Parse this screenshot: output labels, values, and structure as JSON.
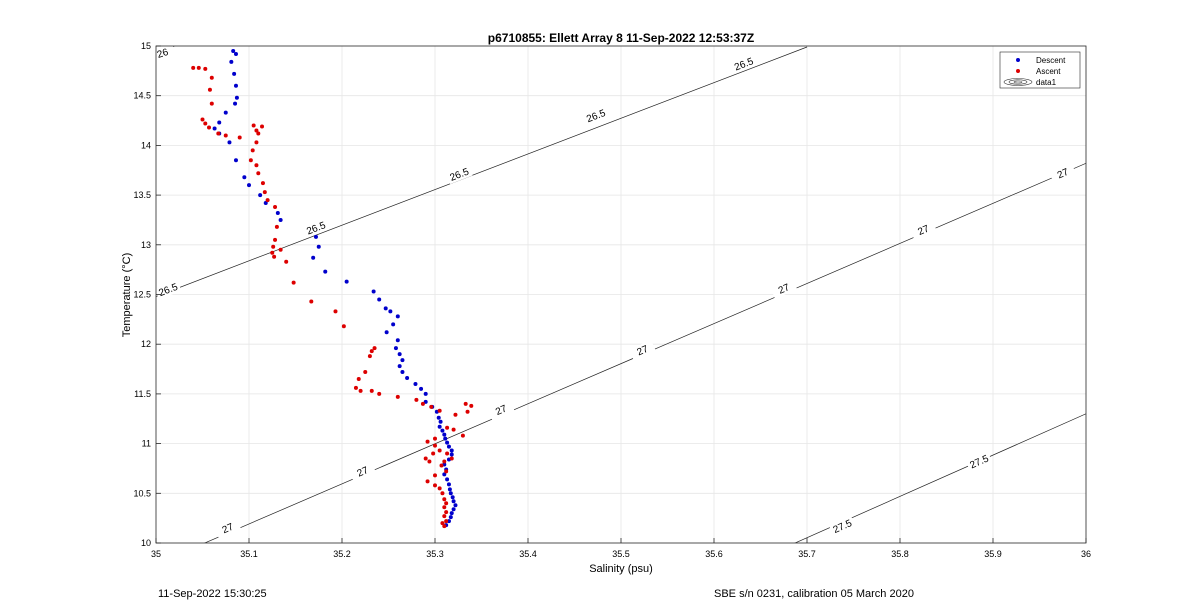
{
  "footer": {
    "left_text": "11-Sep-2022 15:30:25",
    "right_text": "SBE s/n 0231, calibration 05 March 2020"
  },
  "chart_data": {
    "type": "scatter",
    "title": "p6710855: Ellett Array 8 11-Sep-2022 12:53:37Z",
    "xlabel": "Salinity (psu)",
    "ylabel": "Temperature (°C)",
    "xlim": [
      35,
      36
    ],
    "ylim": [
      10,
      15
    ],
    "xticks": [
      35,
      35.1,
      35.2,
      35.3,
      35.4,
      35.5,
      35.6,
      35.7,
      35.8,
      35.9,
      36
    ],
    "yticks": [
      10,
      10.5,
      11,
      11.5,
      12,
      12.5,
      13,
      13.5,
      14,
      14.5,
      15
    ],
    "xtick_labels": [
      "35",
      "35.1",
      "35.2",
      "35.3",
      "35.4",
      "35.5",
      "35.6",
      "35.7",
      "35.8",
      "35.9",
      "36"
    ],
    "ytick_labels": [
      "10",
      "10.5",
      "11",
      "11.5",
      "12",
      "12.5",
      "13",
      "13.5",
      "14",
      "14.5",
      "15"
    ],
    "grid": true,
    "legend_position": "top-right",
    "series": [
      {
        "name": "Descent",
        "color": "#0000cc",
        "marker": "dot",
        "points": [
          [
            35.083,
            14.95
          ],
          [
            35.086,
            14.92
          ],
          [
            35.081,
            14.84
          ],
          [
            35.084,
            14.72
          ],
          [
            35.086,
            14.6
          ],
          [
            35.087,
            14.48
          ],
          [
            35.085,
            14.42
          ],
          [
            35.075,
            14.33
          ],
          [
            35.068,
            14.23
          ],
          [
            35.063,
            14.17
          ],
          [
            35.068,
            14.12
          ],
          [
            35.079,
            14.03
          ],
          [
            35.086,
            13.85
          ],
          [
            35.095,
            13.68
          ],
          [
            35.1,
            13.6
          ],
          [
            35.112,
            13.5
          ],
          [
            35.118,
            13.42
          ],
          [
            35.131,
            13.32
          ],
          [
            35.134,
            13.25
          ],
          [
            35.172,
            13.08
          ],
          [
            35.175,
            12.98
          ],
          [
            35.169,
            12.87
          ],
          [
            35.182,
            12.73
          ],
          [
            35.205,
            12.63
          ],
          [
            35.234,
            12.53
          ],
          [
            35.24,
            12.45
          ],
          [
            35.247,
            12.36
          ],
          [
            35.252,
            12.33
          ],
          [
            35.26,
            12.28
          ],
          [
            35.255,
            12.2
          ],
          [
            35.248,
            12.12
          ],
          [
            35.26,
            12.04
          ],
          [
            35.258,
            11.96
          ],
          [
            35.262,
            11.9
          ],
          [
            35.265,
            11.84
          ],
          [
            35.262,
            11.78
          ],
          [
            35.265,
            11.72
          ],
          [
            35.27,
            11.66
          ],
          [
            35.279,
            11.6
          ],
          [
            35.285,
            11.55
          ],
          [
            35.29,
            11.5
          ],
          [
            35.29,
            11.42
          ],
          [
            35.297,
            11.37
          ],
          [
            35.302,
            11.32
          ],
          [
            35.304,
            11.26
          ],
          [
            35.306,
            11.22
          ],
          [
            35.305,
            11.17
          ],
          [
            35.308,
            11.13
          ],
          [
            35.31,
            11.09
          ],
          [
            35.311,
            11.05
          ],
          [
            35.313,
            11.01
          ],
          [
            35.315,
            10.97
          ],
          [
            35.318,
            10.93
          ],
          [
            35.318,
            10.89
          ],
          [
            35.315,
            10.84
          ],
          [
            35.31,
            10.79
          ],
          [
            35.312,
            10.74
          ],
          [
            35.31,
            10.69
          ],
          [
            35.313,
            10.64
          ],
          [
            35.315,
            10.59
          ],
          [
            35.316,
            10.54
          ],
          [
            35.317,
            10.5
          ],
          [
            35.319,
            10.46
          ],
          [
            35.32,
            10.42
          ],
          [
            35.322,
            10.38
          ],
          [
            35.32,
            10.34
          ],
          [
            35.318,
            10.3
          ],
          [
            35.317,
            10.26
          ],
          [
            35.315,
            10.22
          ],
          [
            35.312,
            10.18
          ]
        ]
      },
      {
        "name": "Ascent",
        "color": "#dd0000",
        "marker": "dot",
        "points": [
          [
            35.04,
            14.78
          ],
          [
            35.046,
            14.78
          ],
          [
            35.053,
            14.77
          ],
          [
            35.06,
            14.68
          ],
          [
            35.058,
            14.56
          ],
          [
            35.06,
            14.42
          ],
          [
            35.05,
            14.26
          ],
          [
            35.053,
            14.22
          ],
          [
            35.057,
            14.18
          ],
          [
            35.067,
            14.12
          ],
          [
            35.075,
            14.1
          ],
          [
            35.09,
            14.08
          ],
          [
            35.105,
            14.2
          ],
          [
            35.108,
            14.15
          ],
          [
            35.114,
            14.19
          ],
          [
            35.11,
            14.12
          ],
          [
            35.108,
            14.03
          ],
          [
            35.104,
            13.95
          ],
          [
            35.102,
            13.85
          ],
          [
            35.108,
            13.8
          ],
          [
            35.11,
            13.72
          ],
          [
            35.115,
            13.62
          ],
          [
            35.117,
            13.53
          ],
          [
            35.12,
            13.45
          ],
          [
            35.128,
            13.38
          ],
          [
            35.13,
            13.18
          ],
          [
            35.128,
            13.05
          ],
          [
            35.126,
            12.98
          ],
          [
            35.134,
            12.95
          ],
          [
            35.125,
            12.92
          ],
          [
            35.127,
            12.88
          ],
          [
            35.14,
            12.83
          ],
          [
            35.148,
            12.62
          ],
          [
            35.167,
            12.43
          ],
          [
            35.193,
            12.33
          ],
          [
            35.202,
            12.18
          ],
          [
            35.235,
            11.96
          ],
          [
            35.232,
            11.93
          ],
          [
            35.23,
            11.88
          ],
          [
            35.225,
            11.72
          ],
          [
            35.218,
            11.65
          ],
          [
            35.215,
            11.56
          ],
          [
            35.22,
            11.53
          ],
          [
            35.232,
            11.53
          ],
          [
            35.24,
            11.5
          ],
          [
            35.26,
            11.47
          ],
          [
            35.28,
            11.44
          ],
          [
            35.287,
            11.4
          ],
          [
            35.296,
            11.37
          ],
          [
            35.305,
            11.33
          ],
          [
            35.322,
            11.29
          ],
          [
            35.335,
            11.32
          ],
          [
            35.339,
            11.38
          ],
          [
            35.333,
            11.4
          ],
          [
            35.313,
            11.16
          ],
          [
            35.32,
            11.14
          ],
          [
            35.33,
            11.08
          ],
          [
            35.3,
            11.05
          ],
          [
            35.292,
            11.02
          ],
          [
            35.3,
            10.98
          ],
          [
            35.305,
            10.93
          ],
          [
            35.298,
            10.9
          ],
          [
            35.29,
            10.85
          ],
          [
            35.294,
            10.82
          ],
          [
            35.313,
            10.9
          ],
          [
            35.318,
            10.85
          ],
          [
            35.31,
            10.82
          ],
          [
            35.307,
            10.78
          ],
          [
            35.312,
            10.72
          ],
          [
            35.3,
            10.68
          ],
          [
            35.292,
            10.62
          ],
          [
            35.3,
            10.58
          ],
          [
            35.305,
            10.55
          ],
          [
            35.308,
            10.5
          ],
          [
            35.31,
            10.44
          ],
          [
            35.312,
            10.4
          ],
          [
            35.31,
            10.36
          ],
          [
            35.312,
            10.31
          ],
          [
            35.31,
            10.27
          ],
          [
            35.312,
            10.22
          ],
          [
            35.308,
            10.2
          ],
          [
            35.31,
            10.17
          ]
        ]
      }
    ],
    "contour_series_name": "data1",
    "density_contours": [
      {
        "sigma": 26,
        "label": "26",
        "line": [
          [
            34.98,
            14.88
          ],
          [
            35.02,
            15.0
          ]
        ],
        "labels": [
          [
            35.007,
            14.93
          ]
        ]
      },
      {
        "sigma": 26.5,
        "label": "26.5",
        "line": [
          [
            35.0,
            12.48
          ],
          [
            35.7,
            14.99
          ]
        ],
        "labels": [
          [
            35.013,
            12.55
          ],
          [
            35.172,
            13.17
          ],
          [
            35.326,
            13.71
          ],
          [
            35.473,
            14.3
          ],
          [
            35.632,
            14.82
          ]
        ]
      },
      {
        "sigma": 27,
        "label": "27",
        "line": [
          [
            35.045,
            9.97
          ],
          [
            36.0,
            13.82
          ]
        ],
        "labels": [
          [
            35.077,
            10.15
          ],
          [
            35.222,
            10.72
          ],
          [
            35.371,
            11.34
          ],
          [
            35.523,
            11.94
          ],
          [
            35.675,
            12.56
          ],
          [
            35.825,
            13.15
          ],
          [
            35.975,
            13.72
          ]
        ]
      },
      {
        "sigma": 27.5,
        "label": "27.5",
        "line": [
          [
            35.68,
            9.97
          ],
          [
            36.0,
            11.3
          ]
        ],
        "labels": [
          [
            35.738,
            10.17
          ],
          [
            35.885,
            10.82
          ]
        ]
      }
    ]
  }
}
